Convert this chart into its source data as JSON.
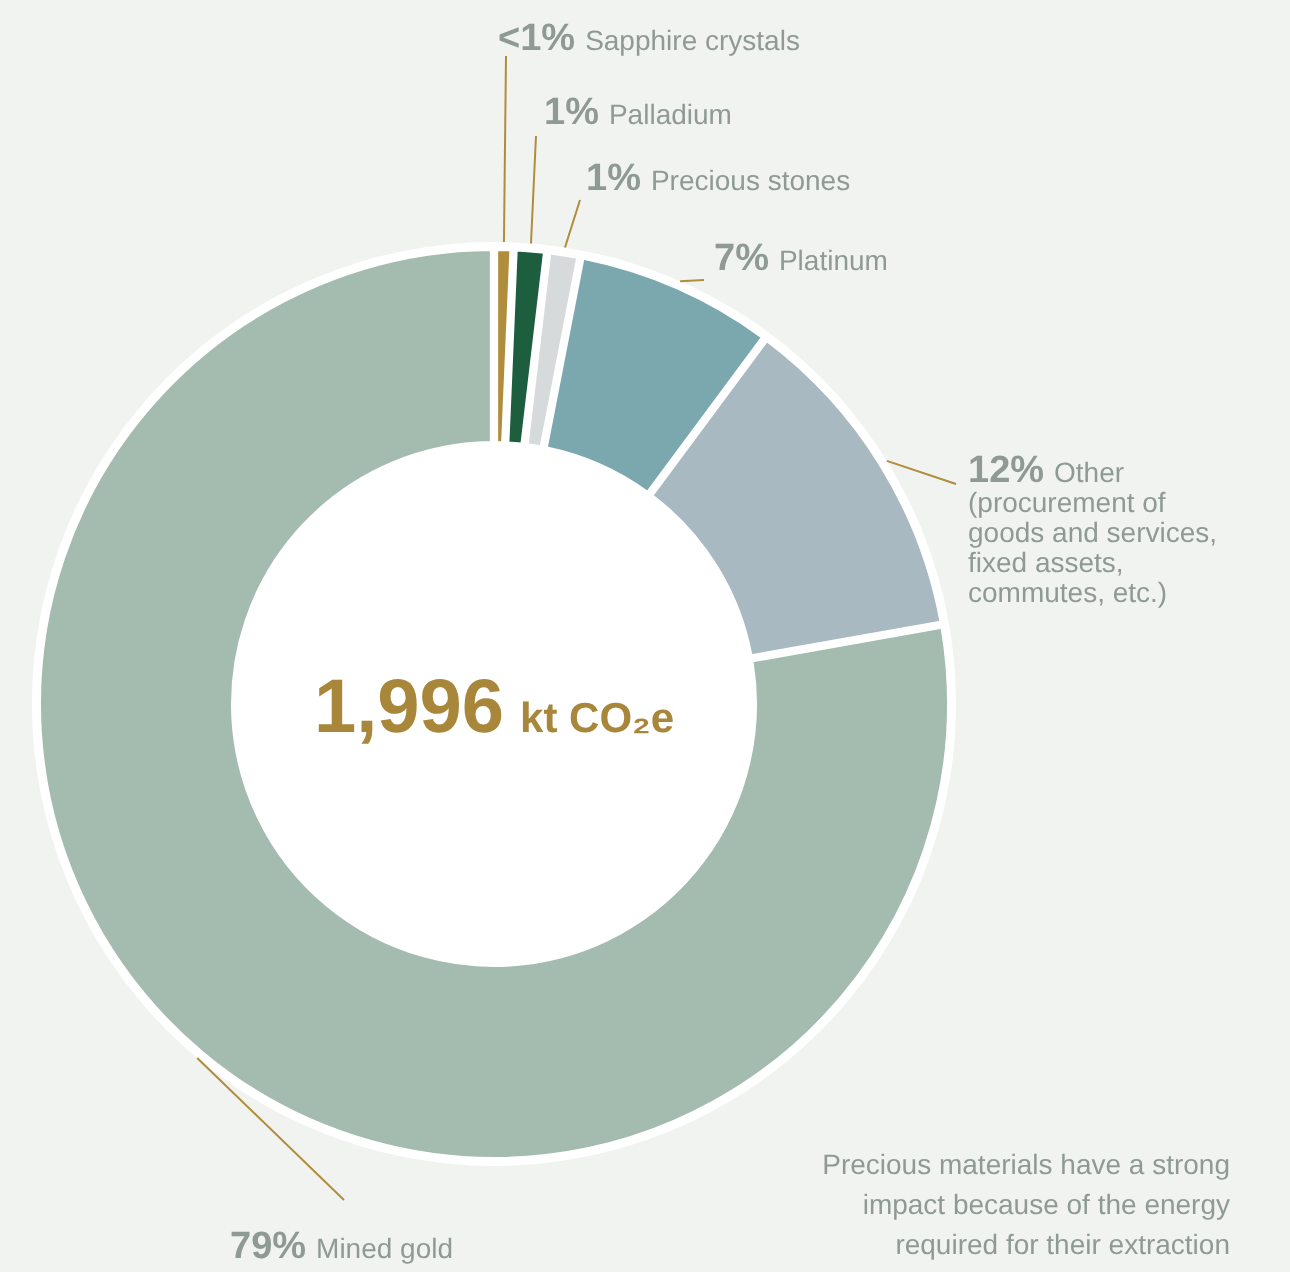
{
  "chart_data": {
    "type": "donut",
    "categories": [
      "Sapphire crystals",
      "Palladium",
      "Precious stones",
      "Platinum",
      "Other (procurement of goods and services, fixed assets, commutes, etc.)",
      "Mined gold"
    ],
    "values": [
      0.5,
      1,
      1,
      7,
      12,
      78.5
    ],
    "value_labels": [
      "<1%",
      "1%",
      "1%",
      "7%",
      "12%",
      "79%"
    ],
    "colors": [
      "#b08d3c",
      "#1d5e3f",
      "#d6dadb",
      "#7ba7ae",
      "#a9b9c2",
      "#a4bbb0"
    ],
    "annotations": [
      "1,996 kt CO₂e",
      "Precious materials have a strong impact because of the energy required for their extraction"
    ]
  }
}
